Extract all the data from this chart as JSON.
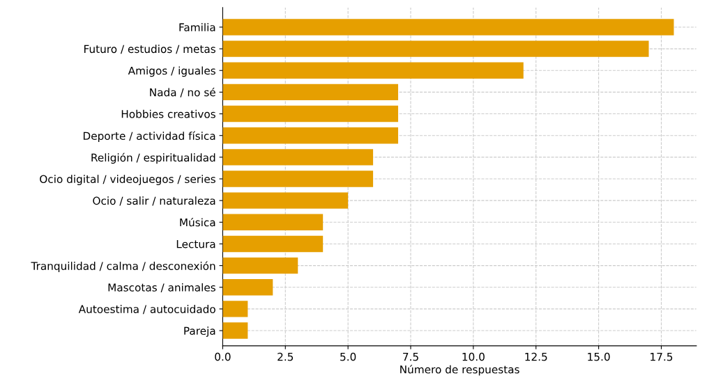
{
  "chart_data": {
    "type": "bar",
    "orientation": "horizontal",
    "xlabel": "Número de respuestas",
    "categories": [
      "Familia",
      "Futuro / estudios / metas",
      "Amigos / iguales",
      "Nada / no sé",
      "Hobbies creativos",
      "Deporte / actividad física",
      "Religión / espiritualidad",
      "Ocio digital / videojuegos / series",
      "Ocio / salir / naturaleza",
      "Música",
      "Lectura",
      "Tranquilidad / calma / desconexión",
      "Mascotas / animales",
      "Autoestima / autocuidado",
      "Pareja"
    ],
    "values": [
      18,
      17,
      12,
      7,
      7,
      7,
      6,
      6,
      5,
      4,
      4,
      3,
      2,
      1,
      1
    ],
    "color": "#e69f00",
    "xlim": [
      0,
      18.9
    ],
    "xticks": [
      {
        "value": 0,
        "label": "0.0"
      },
      {
        "value": 2.5,
        "label": "2.5"
      },
      {
        "value": 5,
        "label": "5.0"
      },
      {
        "value": 7.5,
        "label": "7.5"
      },
      {
        "value": 10,
        "label": "10.0"
      },
      {
        "value": 12.5,
        "label": "12.5"
      },
      {
        "value": 15,
        "label": "15.0"
      },
      {
        "value": 17.5,
        "label": "17.5"
      }
    ],
    "grid": true,
    "line_style": "dashed"
  }
}
